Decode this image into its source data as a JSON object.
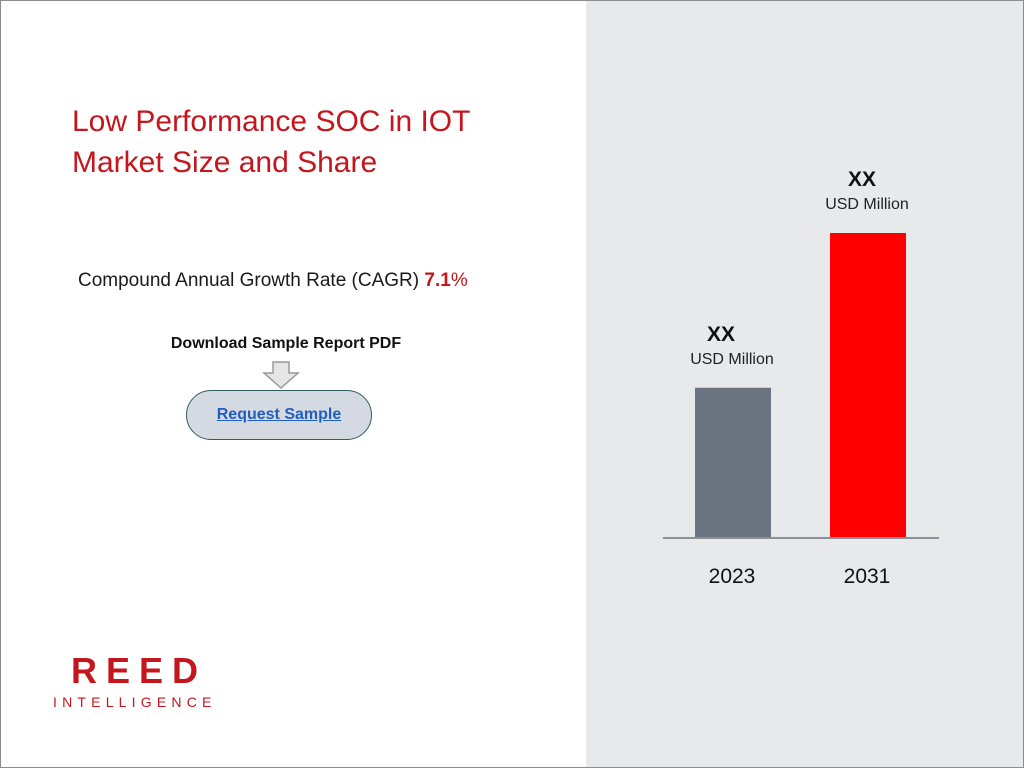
{
  "title": {
    "line1": "Low Performance SOC in IOT",
    "line2": "Market Size and Share"
  },
  "cagr": {
    "label": "Compound Annual Growth Rate (CAGR)",
    "value": "7.1",
    "unit": "%"
  },
  "download": {
    "heading": "Download Sample Report PDF",
    "button_label": "Request Sample"
  },
  "logo": {
    "main": "REED",
    "sub": "INTELLIGENCE"
  },
  "colors": {
    "brand_red": "#c4161c",
    "bar_2023": "#6b7280",
    "bar_2031": "#ff0000",
    "panel_bg": "#e8e9eb"
  },
  "chart_data": {
    "type": "bar",
    "categories": [
      "2023",
      "2031"
    ],
    "values": [
      1.0,
      2.03
    ],
    "value_labels": [
      "XX",
      "XX"
    ],
    "unit_labels": [
      "USD Million",
      "USD Million"
    ],
    "bar_colors": [
      "#6b7280",
      "#ff0000"
    ],
    "title": "",
    "xlabel": "",
    "ylabel": "",
    "ylim": [
      0,
      2.1
    ],
    "grid": false,
    "legend": "none"
  }
}
